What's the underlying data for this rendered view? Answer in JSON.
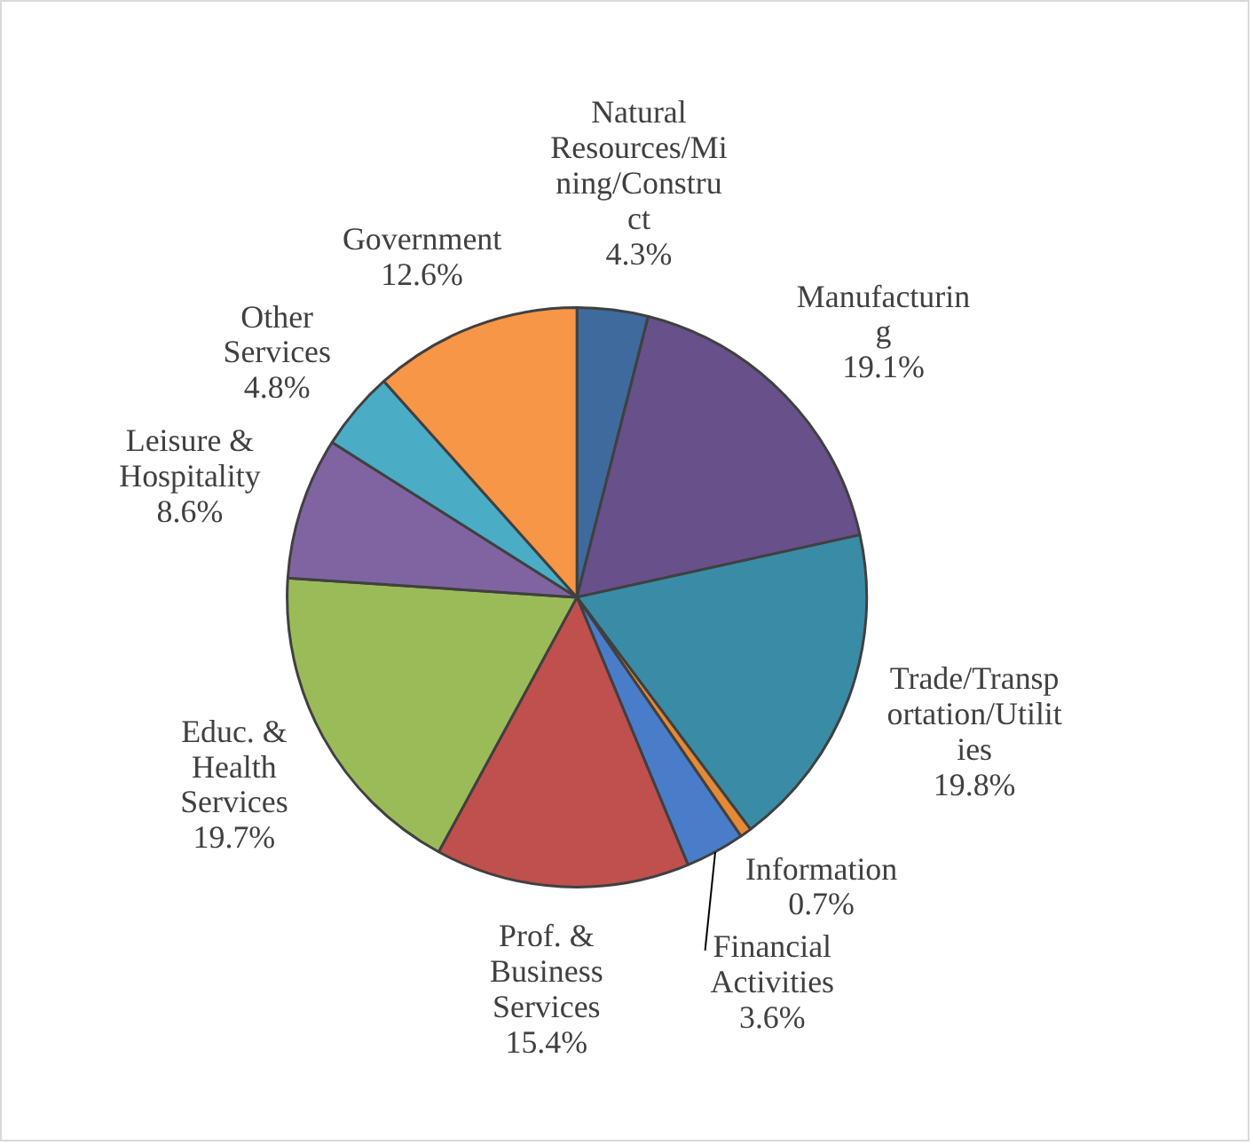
{
  "chart_data": {
    "type": "pie",
    "categories": [
      "Natural Resources/Mining/Construct",
      "Manufacturing",
      "Trade/Transportation/Utilities",
      "Information",
      "Financial Activities",
      "Prof. & Business Services",
      "Educ. & Health Services",
      "Leisure & Hospitality",
      "Other Services",
      "Government"
    ],
    "values": [
      4.3,
      19.1,
      19.8,
      0.7,
      3.6,
      15.4,
      19.7,
      8.6,
      4.8,
      12.6
    ],
    "colors": [
      "#3e6a9e",
      "#68508a",
      "#3a8ca6",
      "#e48a35",
      "#4a7dc9",
      "#c0504d",
      "#9bbb59",
      "#8064a2",
      "#4bacc6",
      "#f79646"
    ],
    "value_labels": [
      "4.3%",
      "19.1%",
      "19.8%",
      "0.7%",
      "3.6%",
      "15.4%",
      "19.7%",
      "8.6%",
      "4.8%",
      "12.6%"
    ],
    "legend": false
  }
}
